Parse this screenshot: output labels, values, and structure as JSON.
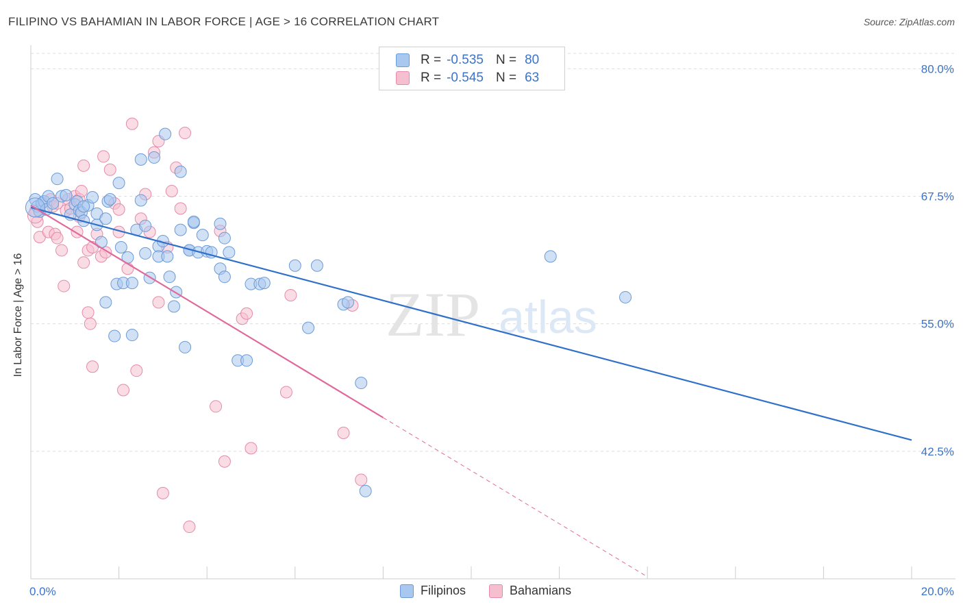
{
  "title": "FILIPINO VS BAHAMIAN IN LABOR FORCE | AGE > 16 CORRELATION CHART",
  "source": "Source: ZipAtlas.com",
  "watermark": {
    "zip": "ZIP",
    "atlas": "atlas"
  },
  "legend": {
    "rows": [
      {
        "r_label": "R =",
        "r_value": "-0.535",
        "n_label": "N =",
        "n_value": "80"
      },
      {
        "r_label": "R =",
        "r_value": "-0.545",
        "n_label": "N =",
        "n_value": "63"
      }
    ]
  },
  "bottom_legend": {
    "items": [
      "Filipinos",
      "Bahamians"
    ]
  },
  "colors": {
    "blue_fill": "#a9c8ef",
    "blue_stroke": "#6a9ad8",
    "blue_line": "#2f70c9",
    "pink_fill": "#f6bfd0",
    "pink_stroke": "#e58aaa",
    "pink_line": "#e0689a",
    "tick_label": "#3a73c9",
    "grid": "#dddddd"
  },
  "chart_data": {
    "type": "scatter",
    "title": "FILIPINO VS BAHAMIAN IN LABOR FORCE | AGE > 16 CORRELATION CHART",
    "xlabel": "",
    "ylabel": "In Labor Force | Age > 16",
    "xlim": [
      0,
      20
    ],
    "ylim": [
      30,
      81.5
    ],
    "x_tick_labels": [
      "0.0%",
      "20.0%"
    ],
    "y_ticks": [
      42.5,
      55.0,
      67.5,
      80.0
    ],
    "y_tick_labels": [
      "42.5%",
      "55.0%",
      "67.5%",
      "80.0%"
    ],
    "grid": true,
    "series": [
      {
        "name": "Filipinos",
        "color": "#a9c8ef",
        "points": [
          [
            0.1,
            67.2
          ],
          [
            0.15,
            66.5
          ],
          [
            0.2,
            66.0
          ],
          [
            0.25,
            66.8
          ],
          [
            0.3,
            67.0
          ],
          [
            0.35,
            66.2
          ],
          [
            0.4,
            67.5
          ],
          [
            0.5,
            66.8
          ],
          [
            0.6,
            69.2
          ],
          [
            0.7,
            67.5
          ],
          [
            0.8,
            67.6
          ],
          [
            0.9,
            65.7
          ],
          [
            1.0,
            66.7
          ],
          [
            1.05,
            67.0
          ],
          [
            1.1,
            66.1
          ],
          [
            1.15,
            65.9
          ],
          [
            1.2,
            65.1
          ],
          [
            1.3,
            66.6
          ],
          [
            1.4,
            67.4
          ],
          [
            1.5,
            64.7
          ],
          [
            1.5,
            65.8
          ],
          [
            1.6,
            63.0
          ],
          [
            1.7,
            57.1
          ],
          [
            1.7,
            65.3
          ],
          [
            1.75,
            67.0
          ],
          [
            1.8,
            67.2
          ],
          [
            1.9,
            53.8
          ],
          [
            1.95,
            58.9
          ],
          [
            2.0,
            68.8
          ],
          [
            2.05,
            62.5
          ],
          [
            2.1,
            59.0
          ],
          [
            2.2,
            61.5
          ],
          [
            2.3,
            53.9
          ],
          [
            2.4,
            64.2
          ],
          [
            2.5,
            67.1
          ],
          [
            2.5,
            71.1
          ],
          [
            2.6,
            64.6
          ],
          [
            2.6,
            61.9
          ],
          [
            2.7,
            59.5
          ],
          [
            2.8,
            71.3
          ],
          [
            2.9,
            62.6
          ],
          [
            2.9,
            61.6
          ],
          [
            3.0,
            63.1
          ],
          [
            3.05,
            73.6
          ],
          [
            3.1,
            61.6
          ],
          [
            3.15,
            59.6
          ],
          [
            3.25,
            56.7
          ],
          [
            3.3,
            58.1
          ],
          [
            3.4,
            64.2
          ],
          [
            3.4,
            69.9
          ],
          [
            3.5,
            52.7
          ],
          [
            3.6,
            62.2
          ],
          [
            3.6,
            62.2
          ],
          [
            3.7,
            64.9
          ],
          [
            3.8,
            62.0
          ],
          [
            3.9,
            63.7
          ],
          [
            4.0,
            62.1
          ],
          [
            4.1,
            62.0
          ],
          [
            4.3,
            60.4
          ],
          [
            4.4,
            59.6
          ],
          [
            4.3,
            64.8
          ],
          [
            4.4,
            63.4
          ],
          [
            4.5,
            62.0
          ],
          [
            4.7,
            51.4
          ],
          [
            4.9,
            51.4
          ],
          [
            5.0,
            58.9
          ],
          [
            5.2,
            58.9
          ],
          [
            5.3,
            59.0
          ],
          [
            6.0,
            60.7
          ],
          [
            6.3,
            54.6
          ],
          [
            6.5,
            60.7
          ],
          [
            7.1,
            56.9
          ],
          [
            7.2,
            57.1
          ],
          [
            7.5,
            49.2
          ],
          [
            7.6,
            38.6
          ],
          [
            11.8,
            61.6
          ],
          [
            13.5,
            57.6
          ],
          [
            2.3,
            59.0
          ],
          [
            3.7,
            65.0
          ],
          [
            1.2,
            66.5
          ]
        ]
      },
      {
        "name": "Bahamians",
        "color": "#f6bfd0",
        "points": [
          [
            0.1,
            66.0
          ],
          [
            0.15,
            65.0
          ],
          [
            0.2,
            63.5
          ],
          [
            0.3,
            67.0
          ],
          [
            0.4,
            64.0
          ],
          [
            0.45,
            67.2
          ],
          [
            0.5,
            66.5
          ],
          [
            0.55,
            63.8
          ],
          [
            0.6,
            63.4
          ],
          [
            0.7,
            62.2
          ],
          [
            0.75,
            58.7
          ],
          [
            0.8,
            66.1
          ],
          [
            0.85,
            67.2
          ],
          [
            1.0,
            67.5
          ],
          [
            1.05,
            64.0
          ],
          [
            1.1,
            67.2
          ],
          [
            1.15,
            68.0
          ],
          [
            1.2,
            61.0
          ],
          [
            1.2,
            70.5
          ],
          [
            1.3,
            56.1
          ],
          [
            1.3,
            62.2
          ],
          [
            1.4,
            62.5
          ],
          [
            1.5,
            63.8
          ],
          [
            1.6,
            61.6
          ],
          [
            1.65,
            71.4
          ],
          [
            1.7,
            62.0
          ],
          [
            1.8,
            70.1
          ],
          [
            1.9,
            66.8
          ],
          [
            2.0,
            66.2
          ],
          [
            2.0,
            64.0
          ],
          [
            2.1,
            48.5
          ],
          [
            2.2,
            60.4
          ],
          [
            2.3,
            74.6
          ],
          [
            2.4,
            50.4
          ],
          [
            2.5,
            65.3
          ],
          [
            2.6,
            67.7
          ],
          [
            2.7,
            64.0
          ],
          [
            2.8,
            71.8
          ],
          [
            2.9,
            57.1
          ],
          [
            2.9,
            72.9
          ],
          [
            3.0,
            38.4
          ],
          [
            3.1,
            62.5
          ],
          [
            3.2,
            68.0
          ],
          [
            3.3,
            70.3
          ],
          [
            3.4,
            66.3
          ],
          [
            3.5,
            73.7
          ],
          [
            3.6,
            35.1
          ],
          [
            4.2,
            46.9
          ],
          [
            4.3,
            64.1
          ],
          [
            4.4,
            41.5
          ],
          [
            4.8,
            55.5
          ],
          [
            4.9,
            56.0
          ],
          [
            5.0,
            42.8
          ],
          [
            5.8,
            48.3
          ],
          [
            5.9,
            57.8
          ],
          [
            7.1,
            44.3
          ],
          [
            7.3,
            56.8
          ],
          [
            7.5,
            39.7
          ],
          [
            1.35,
            55.0
          ],
          [
            1.4,
            50.8
          ],
          [
            0.9,
            66.3
          ],
          [
            1.1,
            65.5
          ],
          [
            0.6,
            66.8
          ]
        ]
      }
    ],
    "trend_lines": [
      {
        "series": "Filipinos",
        "x": [
          0.0,
          20.0
        ],
        "y": [
          66.4,
          43.6
        ],
        "style": "solid"
      },
      {
        "series": "Bahamians",
        "x": [
          0.0,
          8.0
        ],
        "y": [
          66.6,
          45.8
        ],
        "style": "solid"
      },
      {
        "series": "Bahamians",
        "x": [
          8.0,
          14.0
        ],
        "y": [
          45.8,
          30.2
        ],
        "style": "dashed"
      }
    ]
  }
}
